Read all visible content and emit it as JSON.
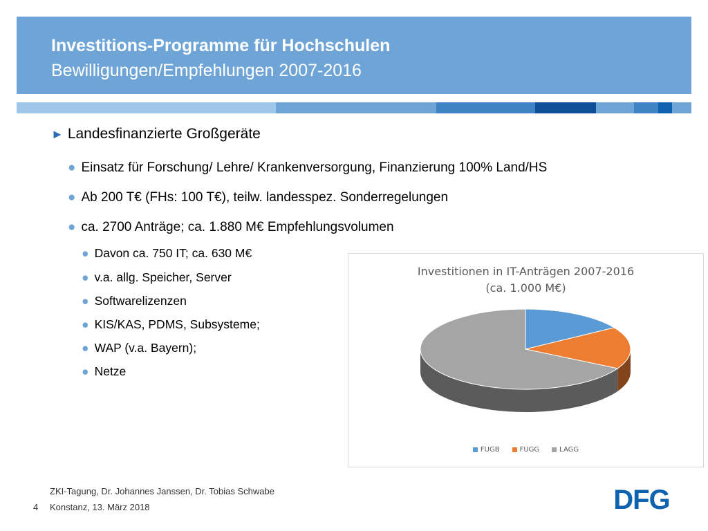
{
  "header": {
    "title": "Investitions-Programme für Hochschulen",
    "subtitle": "Bewilligungen/Empfehlungen 2007-2016"
  },
  "stripe_colors": [
    "#9fc7ea",
    "#6ea5d6",
    "#3f83c4",
    "#0f4f9a",
    "#6ea5d6",
    "#3f83c4",
    "#0f62b0",
    "#6ea5d6"
  ],
  "bullets": {
    "level1": "Landesfinanzierte Großgeräte",
    "level2": [
      "Einsatz für Forschung/ Lehre/ Krankenversorgung, Finanzierung 100% Land/HS",
      "Ab 200 T€ (FHs: 100 T€), teilw. landesspez. Sonderregelungen",
      "ca. 2700 Anträge; ca. 1.880 M€ Empfehlungsvolumen"
    ],
    "level3": [
      "Davon ca. 750 IT; ca. 630 M€",
      "v.a. allg. Speicher, Server",
      "Softwarelizenzen",
      "KIS/KAS, PDMS, Subsysteme;",
      "WAP (v.a. Bayern);",
      "Netze"
    ]
  },
  "chart_data": {
    "type": "pie",
    "title": "Investitionen in IT-Anträgen 2007-2016",
    "subtitle": "(ca. 1.000 M€)",
    "categories": [
      "FUGB",
      "FUGG",
      "LAGG"
    ],
    "values": [
      16,
      17,
      67
    ],
    "colors": [
      "#5b9bd5",
      "#ed7d31",
      "#a5a5a5"
    ],
    "legend_position": "bottom"
  },
  "footer": {
    "line1": "ZKI-Tagung, Dr. Johannes Janssen, Dr. Tobias Schwabe",
    "line2": "Konstanz, 13. März 2018",
    "page": "4"
  },
  "logo": {
    "text": "DFG",
    "color": "#0f62b0"
  }
}
